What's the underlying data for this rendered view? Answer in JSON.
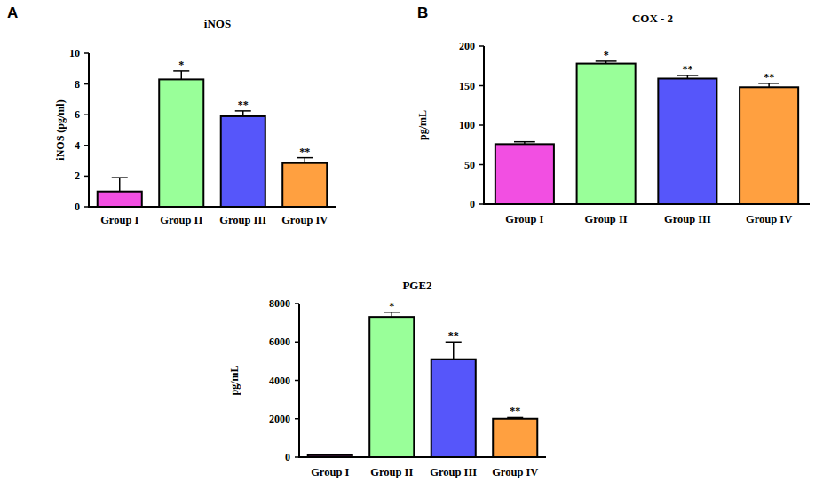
{
  "chart_data": [
    {
      "type": "bar",
      "panel": "A",
      "title": "iNOS",
      "y_label": "iNOS (pg/ml)",
      "categories": [
        "Group I",
        "Group II",
        "Group III",
        "Group IV"
      ],
      "values": [
        1.0,
        8.3,
        5.9,
        2.85
      ],
      "errors": [
        0.9,
        0.55,
        0.35,
        0.35
      ],
      "annotations": [
        null,
        "*",
        "**",
        "**"
      ],
      "colors": [
        "#f24fe2",
        "#99ff99",
        "#5656fa",
        "#ffa040"
      ],
      "ylim": [
        0,
        10
      ],
      "yticks": [
        0,
        2,
        4,
        6,
        8,
        10
      ],
      "grid": false
    },
    {
      "type": "bar",
      "panel": "B",
      "title": "COX - 2",
      "y_label": "pg/mL",
      "categories": [
        "Group I",
        "Group II",
        "Group III",
        "Group IV"
      ],
      "values": [
        76,
        178,
        159,
        148
      ],
      "errors": [
        3,
        3,
        4,
        5
      ],
      "annotations": [
        null,
        "*",
        "**",
        "**"
      ],
      "colors": [
        "#f24fe2",
        "#99ff99",
        "#5656fa",
        "#ffa040"
      ],
      "ylim": [
        0,
        200
      ],
      "yticks": [
        0,
        50,
        100,
        150,
        200
      ],
      "grid": false
    },
    {
      "type": "bar",
      "title": "PGE2",
      "y_label": "pg/mL",
      "categories": [
        "Group I",
        "Group II",
        "Group III",
        "Group IV"
      ],
      "values": [
        100,
        7300,
        5100,
        2000
      ],
      "errors": [
        40,
        250,
        900,
        60
      ],
      "annotations": [
        null,
        "*",
        "**",
        "**"
      ],
      "colors": [
        "#f24fe2",
        "#99ff99",
        "#5656fa",
        "#ffa040"
      ],
      "ylim": [
        0,
        8000
      ],
      "yticks": [
        0,
        2000,
        4000,
        6000,
        8000
      ],
      "grid": false
    }
  ]
}
